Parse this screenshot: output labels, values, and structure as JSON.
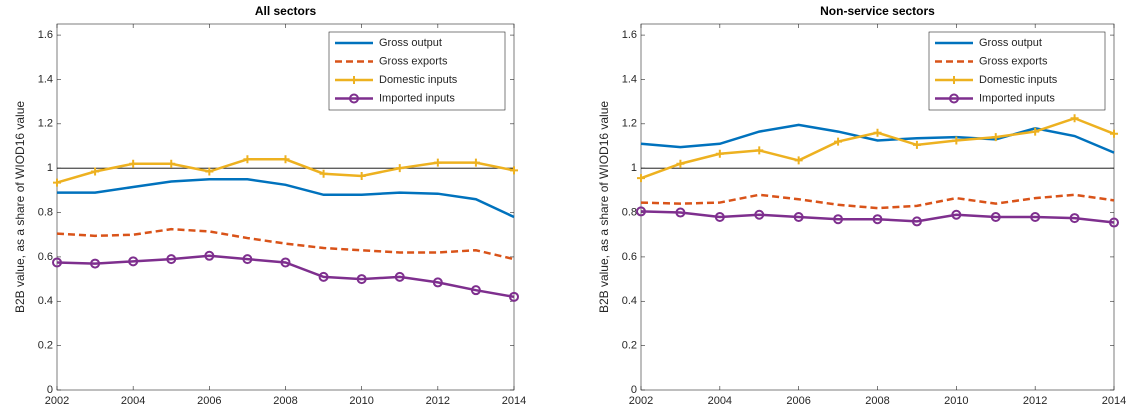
{
  "chart_data": [
    {
      "type": "line",
      "title": "All sectors",
      "y_label": "B2B value, as a share of WIOD16 value",
      "x": [
        2002,
        2003,
        2004,
        2005,
        2006,
        2007,
        2008,
        2009,
        2010,
        2011,
        2012,
        2013,
        2014
      ],
      "xlim": [
        2002,
        2014
      ],
      "xticks": [
        2002,
        2004,
        2006,
        2008,
        2010,
        2012,
        2014
      ],
      "ylim": [
        0,
        1.65
      ],
      "yticks": [
        0,
        0.2,
        0.4,
        0.6,
        0.8,
        1,
        1.2,
        1.4,
        1.6
      ],
      "hline": 1,
      "legend": "top-right",
      "series": [
        {
          "name": "Gross output",
          "color": "#0072BD",
          "dash": false,
          "marker": "none",
          "values": [
            0.89,
            0.89,
            0.915,
            0.94,
            0.95,
            0.95,
            0.925,
            0.88,
            0.88,
            0.89,
            0.885,
            0.86,
            0.78
          ]
        },
        {
          "name": "Gross exports",
          "color": "#D95319",
          "dash": true,
          "marker": "none",
          "values": [
            0.705,
            0.695,
            0.7,
            0.725,
            0.715,
            0.685,
            0.66,
            0.64,
            0.63,
            0.62,
            0.62,
            0.63,
            0.59
          ]
        },
        {
          "name": "Domestic inputs",
          "color": "#EDB120",
          "dash": false,
          "marker": "plus",
          "values": [
            0.935,
            0.985,
            1.02,
            1.02,
            0.985,
            1.04,
            1.04,
            0.975,
            0.965,
            1.0,
            1.025,
            1.025,
            0.99
          ]
        },
        {
          "name": "Imported inputs",
          "color": "#7E2F8E",
          "dash": false,
          "marker": "circle",
          "values": [
            0.575,
            0.57,
            0.58,
            0.59,
            0.605,
            0.59,
            0.575,
            0.51,
            0.5,
            0.51,
            0.485,
            0.45,
            0.42
          ]
        }
      ]
    },
    {
      "type": "line",
      "title": "Non-service sectors",
      "y_label": "B2B value, as a share of WIOD16 value",
      "x": [
        2002,
        2003,
        2004,
        2005,
        2006,
        2007,
        2008,
        2009,
        2010,
        2011,
        2012,
        2013,
        2014
      ],
      "xlim": [
        2002,
        2014
      ],
      "xticks": [
        2002,
        2004,
        2006,
        2008,
        2010,
        2012,
        2014
      ],
      "ylim": [
        0,
        1.65
      ],
      "yticks": [
        0,
        0.2,
        0.4,
        0.6,
        0.8,
        1,
        1.2,
        1.4,
        1.6
      ],
      "hline": 1,
      "legend": "top-right",
      "series": [
        {
          "name": "Gross output",
          "color": "#0072BD",
          "dash": false,
          "marker": "none",
          "values": [
            1.11,
            1.095,
            1.11,
            1.165,
            1.195,
            1.165,
            1.125,
            1.135,
            1.14,
            1.13,
            1.18,
            1.145,
            1.07
          ]
        },
        {
          "name": "Gross exports",
          "color": "#D95319",
          "dash": true,
          "marker": "none",
          "values": [
            0.845,
            0.84,
            0.845,
            0.88,
            0.86,
            0.835,
            0.82,
            0.83,
            0.865,
            0.84,
            0.865,
            0.88,
            0.855
          ]
        },
        {
          "name": "Domestic inputs",
          "color": "#EDB120",
          "dash": false,
          "marker": "plus",
          "values": [
            0.955,
            1.02,
            1.065,
            1.08,
            1.035,
            1.12,
            1.16,
            1.105,
            1.125,
            1.14,
            1.165,
            1.225,
            1.155
          ]
        },
        {
          "name": "Imported inputs",
          "color": "#7E2F8E",
          "dash": false,
          "marker": "circle",
          "values": [
            0.805,
            0.8,
            0.78,
            0.79,
            0.78,
            0.77,
            0.77,
            0.76,
            0.79,
            0.78,
            0.78,
            0.775,
            0.755
          ]
        }
      ]
    }
  ]
}
